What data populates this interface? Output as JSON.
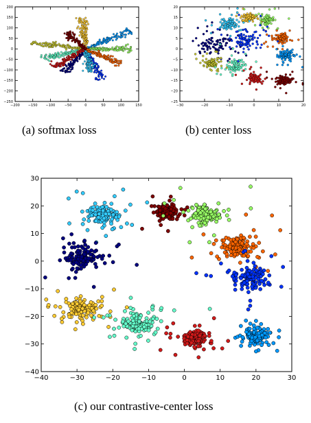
{
  "captions": {
    "a": "(a)  softmax loss",
    "b": "(b)  center loss",
    "c": "(c)  our contrastive-center loss"
  },
  "colors": [
    "#00007f",
    "#0033ff",
    "#0099ff",
    "#33ccff",
    "#66ffcc",
    "#99ff66",
    "#cccc33",
    "#ffcc33",
    "#ff6600",
    "#d11a1a",
    "#7f0000"
  ],
  "chart_data": [
    {
      "id": "softmax",
      "type": "scatter",
      "title": "",
      "xlabel": "",
      "ylabel": "",
      "xlim": [
        -200,
        150
      ],
      "ylim": [
        -250,
        200
      ],
      "xticks": [
        -200,
        -150,
        -100,
        -50,
        0,
        50,
        100,
        150
      ],
      "yticks": [
        -250,
        -200,
        -150,
        -100,
        -50,
        0,
        50,
        100,
        150,
        200
      ],
      "grid": false,
      "clusters": [
        {
          "color_index": 0,
          "start": [
            0,
            0
          ],
          "end": [
            -60,
            -110
          ],
          "spread": 6
        },
        {
          "color_index": 1,
          "start": [
            0,
            0
          ],
          "end": [
            45,
            -145
          ],
          "spread": 6
        },
        {
          "color_index": 2,
          "start": [
            0,
            0
          ],
          "end": [
            125,
            85
          ],
          "spread": 6
        },
        {
          "color_index": 3,
          "start": [
            0,
            0
          ],
          "end": [
            15,
            -110
          ],
          "spread": 6
        },
        {
          "color_index": 4,
          "start": [
            0,
            0
          ],
          "end": [
            -125,
            -45
          ],
          "spread": 6
        },
        {
          "color_index": 5,
          "start": [
            0,
            0
          ],
          "end": [
            130,
            0
          ],
          "spread": 6
        },
        {
          "color_index": 6,
          "start": [
            0,
            0
          ],
          "end": [
            -155,
            30
          ],
          "spread": 6
        },
        {
          "color_index": 7,
          "start": [
            0,
            0
          ],
          "end": [
            -10,
            150
          ],
          "spread": 6
        },
        {
          "color_index": 8,
          "start": [
            0,
            0
          ],
          "end": [
            100,
            -70
          ],
          "spread": 6
        },
        {
          "color_index": 9,
          "start": [
            0,
            0
          ],
          "end": [
            -90,
            -85
          ],
          "spread": 6
        },
        {
          "color_index": 10,
          "start": [
            0,
            0
          ],
          "end": [
            -55,
            80
          ],
          "spread": 6
        }
      ]
    },
    {
      "id": "center",
      "type": "scatter",
      "title": "",
      "xlabel": "",
      "ylabel": "",
      "xlim": [
        -30,
        20
      ],
      "ylim": [
        -25,
        20
      ],
      "xticks": [
        -30,
        -20,
        -10,
        0,
        10,
        20
      ],
      "yticks": [
        -25,
        -20,
        -15,
        -10,
        -5,
        0,
        5,
        10,
        15,
        20
      ],
      "grid": false,
      "clusters": [
        {
          "color_index": 7,
          "center": [
            -2,
            15
          ],
          "spread": 1.2
        },
        {
          "color_index": 5,
          "center": [
            5,
            14
          ],
          "spread": 1.3
        },
        {
          "color_index": 3,
          "center": [
            -10,
            12
          ],
          "spread": 1.6
        },
        {
          "color_index": 8,
          "center": [
            11,
            5
          ],
          "spread": 1.5
        },
        {
          "color_index": 0,
          "center": [
            -16,
            2
          ],
          "spread": 3.5
        },
        {
          "color_index": 2,
          "center": [
            13,
            -3
          ],
          "spread": 1.5
        },
        {
          "color_index": 6,
          "center": [
            -17,
            -7
          ],
          "spread": 1.4
        },
        {
          "color_index": 4,
          "center": [
            -7,
            -8
          ],
          "spread": 1.6
        },
        {
          "color_index": 9,
          "center": [
            0,
            -14
          ],
          "spread": 1.3
        },
        {
          "color_index": 10,
          "center": [
            12,
            -15
          ],
          "spread": 1.3
        },
        {
          "color_index": 1,
          "center": [
            -4,
            4
          ],
          "spread": 3.0
        }
      ]
    },
    {
      "id": "contrastive-center",
      "type": "scatter",
      "title": "",
      "xlabel": "",
      "ylabel": "",
      "xlim": [
        -40,
        30
      ],
      "ylim": [
        -40,
        30
      ],
      "xticks": [
        -40,
        -30,
        -20,
        -10,
        0,
        10,
        20,
        30
      ],
      "yticks": [
        -40,
        -30,
        -20,
        -10,
        0,
        10,
        20,
        30
      ],
      "grid": false,
      "clusters": [
        {
          "color_index": 3,
          "center": [
            -23,
            17
          ],
          "spread": 2.3
        },
        {
          "color_index": 10,
          "center": [
            -5,
            18
          ],
          "spread": 1.6
        },
        {
          "color_index": 5,
          "center": [
            6,
            17
          ],
          "spread": 2.0
        },
        {
          "color_index": 8,
          "center": [
            15,
            5
          ],
          "spread": 2.4
        },
        {
          "color_index": 0,
          "center": [
            -29,
            1
          ],
          "spread": 2.2
        },
        {
          "color_index": 1,
          "center": [
            18,
            -6
          ],
          "spread": 2.4
        },
        {
          "color_index": 7,
          "center": [
            -29,
            -17
          ],
          "spread": 2.4
        },
        {
          "color_index": 4,
          "center": [
            -13,
            -23
          ],
          "spread": 2.2
        },
        {
          "color_index": 9,
          "center": [
            3,
            -28
          ],
          "spread": 1.8
        },
        {
          "color_index": 2,
          "center": [
            20,
            -27
          ],
          "spread": 1.7
        }
      ]
    }
  ]
}
